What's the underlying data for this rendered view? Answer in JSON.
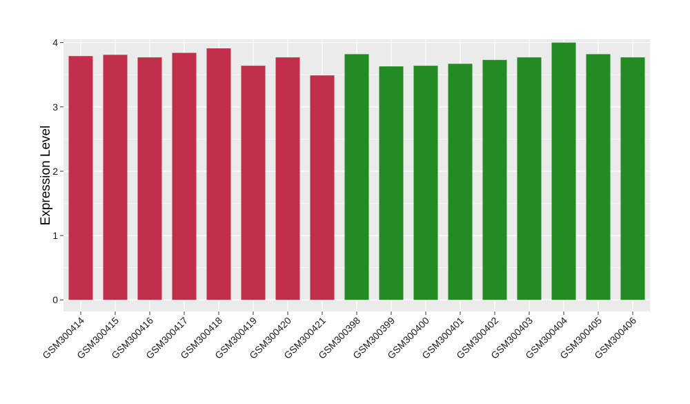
{
  "chart_data": {
    "type": "bar",
    "title": "",
    "xlabel": "",
    "ylabel": "Expression Level",
    "ylim": [
      -0.18,
      4.05
    ],
    "yticks": [
      0,
      1,
      2,
      3,
      4
    ],
    "grid": true,
    "legend": "none",
    "categories": [
      "GSM300414",
      "GSM300415",
      "GSM300416",
      "GSM300417",
      "GSM300418",
      "GSM300419",
      "GSM300420",
      "GSM300421",
      "GSM300398",
      "GSM300399",
      "GSM300400",
      "GSM300401",
      "GSM300402",
      "GSM300403",
      "GSM300404",
      "GSM300405",
      "GSM300406"
    ],
    "values": [
      3.79,
      3.81,
      3.77,
      3.84,
      3.91,
      3.64,
      3.77,
      3.49,
      3.82,
      3.63,
      3.64,
      3.67,
      3.73,
      3.77,
      4.0,
      3.82,
      3.77
    ],
    "bar_colors": [
      "#C0304A",
      "#C0304A",
      "#C0304A",
      "#C0304A",
      "#C0304A",
      "#C0304A",
      "#C0304A",
      "#C0304A",
      "#228B22",
      "#228B22",
      "#228B22",
      "#228B22",
      "#228B22",
      "#228B22",
      "#228B22",
      "#228B22",
      "#228B22"
    ],
    "panel_background": "#EBEBEB",
    "gridline_color": "#FFFFFF"
  }
}
